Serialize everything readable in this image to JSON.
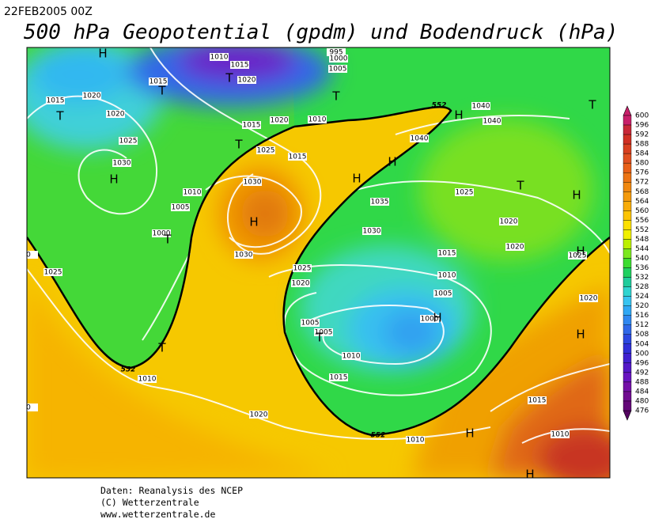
{
  "header": {
    "date": "22FEB2005 00Z",
    "title": "500 hPa Geopotential (gpdm) und Bodendruck (hPa)"
  },
  "map": {
    "isobar_labels": [
      1010,
      1015,
      1020,
      995,
      1000,
      1005,
      1015,
      1015,
      1020,
      1020,
      1025,
      1030,
      1015,
      1020,
      1010,
      1025,
      1015,
      1040,
      1040,
      1040,
      1030,
      1010,
      1005,
      1000,
      1035,
      1025,
      1020,
      1030,
      1020,
      1025,
      1015,
      1030,
      1025,
      1010,
      1020,
      1005,
      1025,
      1005,
      1005,
      1000,
      1020,
      1010,
      1015,
      1010,
      1020,
      1015,
      1010,
      1010,
      0,
      0
    ],
    "pressure_centers": [
      "H",
      "T",
      "T",
      "T",
      "T",
      "T",
      "H",
      "H",
      "H",
      "H",
      "T",
      "H",
      "T",
      "H",
      "H",
      "T",
      "T",
      "H",
      "T",
      "H",
      "H",
      "H"
    ],
    "contour_labels": [
      552,
      552,
      552
    ]
  },
  "colorbar": {
    "labels": [
      600,
      596,
      592,
      588,
      584,
      580,
      576,
      572,
      568,
      564,
      560,
      556,
      552,
      548,
      544,
      540,
      536,
      532,
      528,
      524,
      520,
      516,
      512,
      508,
      504,
      500,
      496,
      492,
      488,
      484,
      480,
      476
    ],
    "colors": [
      "#c8206a",
      "#c82838",
      "#d03024",
      "#d84020",
      "#e05020",
      "#e86018",
      "#ec7414",
      "#f08810",
      "#f49a0c",
      "#f8ac08",
      "#fcc404",
      "#fce000",
      "#f0f000",
      "#bcf000",
      "#7ce820",
      "#3cdc30",
      "#20d060",
      "#20cc9c",
      "#30d4d0",
      "#38c4f0",
      "#30a8f4",
      "#3088f0",
      "#3068e8",
      "#2c48e0",
      "#3030d8",
      "#4020d0",
      "#5418c8",
      "#6814c0",
      "#7410a8",
      "#700c90",
      "#640878",
      "#540460"
    ]
  },
  "footer": {
    "lines": [
      "Daten: Reanalysis des NCEP",
      "(C) Wetterzentrale",
      "www.wetterzentrale.de"
    ]
  }
}
